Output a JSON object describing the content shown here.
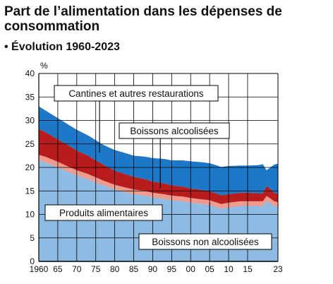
{
  "title": "Part de l’alimentation dans les dépenses de consommation",
  "subtitle": "• Évolution 1960-2023",
  "chart_data": {
    "type": "area",
    "stacked": true,
    "ylabel": "%",
    "xlabel": "",
    "ylim": [
      0,
      40
    ],
    "xlim": [
      1960,
      2023
    ],
    "grid": true,
    "yticks": [
      "0",
      "5",
      "10",
      "15",
      "20",
      "25",
      "30",
      "35",
      "40"
    ],
    "xtick_values": [
      1960,
      1965,
      1970,
      1975,
      1980,
      1985,
      1990,
      1995,
      2000,
      2005,
      2010,
      2015,
      2023
    ],
    "xticks": [
      "1960",
      "65",
      "70",
      "75",
      "80",
      "85",
      "90",
      "95",
      "00",
      "05",
      "10",
      "15",
      "23"
    ],
    "x": [
      1960,
      1962,
      1965,
      1968,
      1970,
      1973,
      1975,
      1977,
      1980,
      1983,
      1985,
      1988,
      1990,
      1993,
      1995,
      1998,
      2000,
      2003,
      2005,
      2007,
      2008,
      2010,
      2013,
      2015,
      2018,
      2019,
      2020,
      2021,
      2022,
      2023
    ],
    "series": [
      {
        "name": "Produits alimentaires",
        "color": "#8dbbe3",
        "values": [
          21.5,
          21.0,
          20.0,
          19.0,
          18.3,
          17.5,
          16.8,
          16.2,
          15.3,
          14.7,
          14.3,
          14.0,
          13.6,
          13.3,
          13.0,
          12.8,
          12.5,
          12.2,
          12.0,
          11.5,
          11.2,
          11.5,
          11.8,
          11.8,
          11.8,
          11.8,
          12.8,
          12.4,
          11.8,
          11.6
        ]
      },
      {
        "name": "Boissons non alcoolisées",
        "color": "#ee9b8d",
        "values": [
          1.2,
          1.2,
          1.2,
          1.1,
          1.1,
          1.1,
          1.1,
          1.0,
          1.0,
          1.0,
          1.0,
          1.0,
          1.0,
          1.0,
          1.0,
          1.0,
          1.0,
          1.0,
          1.0,
          1.0,
          1.0,
          1.0,
          1.0,
          1.0,
          1.0,
          1.0,
          1.1,
          1.0,
          1.0,
          1.0
        ]
      },
      {
        "name": "Boissons alcoolisées",
        "color": "#b91c1c",
        "values": [
          5.5,
          5.2,
          4.8,
          4.5,
          4.2,
          3.9,
          3.6,
          3.4,
          3.0,
          2.8,
          2.7,
          2.5,
          2.4,
          2.3,
          2.2,
          2.1,
          2.0,
          2.0,
          1.9,
          1.9,
          1.9,
          1.8,
          1.8,
          1.8,
          1.7,
          1.7,
          2.2,
          2.0,
          1.8,
          1.8
        ]
      },
      {
        "name": "Cantines et autres restaurations",
        "color": "#1e78c8",
        "values": [
          4.8,
          4.6,
          4.5,
          4.4,
          4.4,
          4.3,
          4.3,
          4.2,
          4.4,
          4.5,
          4.5,
          4.8,
          5.0,
          5.2,
          5.3,
          5.6,
          5.8,
          5.9,
          6.0,
          6.0,
          6.0,
          6.0,
          5.8,
          5.8,
          6.0,
          6.2,
          3.3,
          4.6,
          6.0,
          6.4
        ]
      }
    ],
    "annotations": [
      {
        "text": "Cantines et autres restaurations",
        "series": "Cantines et autres restaurations",
        "year": 1976
      },
      {
        "text": "Boissons alcoolisées",
        "series": "Boissons alcoolisées",
        "year": 1992
      },
      {
        "text": "Produits alimentaires",
        "series": "Produits alimentaires",
        "year": null
      },
      {
        "text": "Boissons non alcoolisées",
        "series": "Boissons non alcoolisées",
        "year": 2005
      }
    ]
  }
}
